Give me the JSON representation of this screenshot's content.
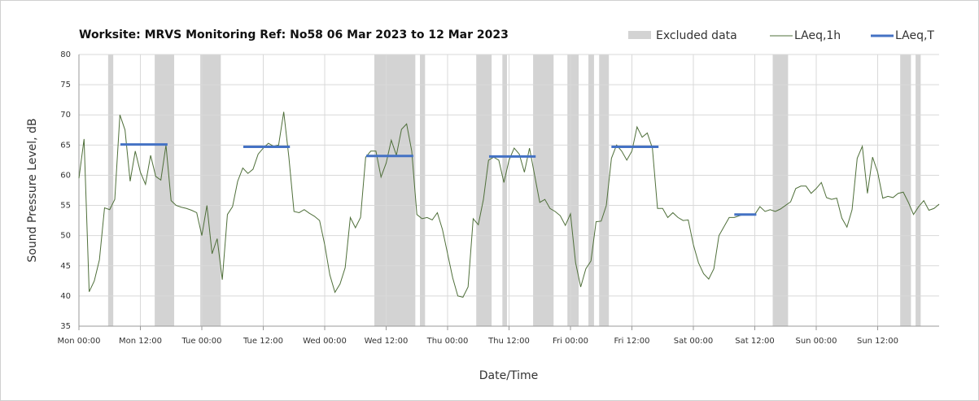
{
  "chart_data": {
    "type": "line",
    "title": "Worksite: MRVS   Monitoring Ref: No58    06 Mar 2023 to 12 Mar 2023",
    "x_label": "Date/Time",
    "y_label": "Sound Pressure Level, dB",
    "x": [
      0,
      1,
      2,
      3,
      4,
      5,
      6,
      7,
      8,
      9,
      10,
      11,
      12,
      13,
      14,
      15,
      16,
      17,
      18,
      19,
      20,
      21,
      22,
      23,
      24,
      25,
      26,
      27,
      28,
      29,
      30,
      31,
      32,
      33,
      34,
      35,
      36,
      37,
      38,
      39,
      40,
      41,
      42,
      43,
      44,
      45,
      46,
      47,
      48,
      49,
      50,
      51,
      52,
      53,
      54,
      55,
      56,
      57,
      58,
      59,
      60,
      61,
      62,
      63,
      64,
      65,
      66,
      67,
      68,
      69,
      70,
      71,
      72,
      73,
      74,
      75,
      76,
      77,
      78,
      79,
      80,
      81,
      82,
      83,
      84,
      85,
      86,
      87,
      88,
      89,
      90,
      91,
      92,
      93,
      94,
      95,
      96,
      97,
      98,
      99,
      100,
      101,
      102,
      103,
      104,
      105,
      106,
      107,
      108,
      109,
      110,
      111,
      112,
      113,
      114,
      115,
      116,
      117,
      118,
      119,
      120,
      121,
      122,
      123,
      124,
      125,
      126,
      127,
      128,
      129,
      130,
      131,
      132,
      133,
      134,
      135,
      136,
      137,
      138,
      139,
      140,
      141,
      142,
      143,
      144,
      145,
      146,
      147,
      148,
      149,
      150,
      151,
      152,
      153,
      154,
      155,
      156,
      157,
      158,
      159,
      160,
      161,
      162,
      163,
      164,
      165,
      166,
      167,
      168
    ],
    "series": [
      {
        "name": "LAeq,1h",
        "color": "#4f6f3a",
        "values": [
          59.5,
          66,
          40.7,
          42.5,
          46,
          54.6,
          54.3,
          56,
          70,
          67.5,
          59,
          64,
          60.5,
          58.5,
          63.3,
          59.8,
          59.2,
          65,
          55.8,
          55,
          54.7,
          54.5,
          54.2,
          53.8,
          50,
          55,
          47,
          49.5,
          42.7,
          53.5,
          54.8,
          59,
          61.2,
          60.3,
          61,
          63.5,
          64.5,
          65.3,
          64.8,
          65,
          70.5,
          63,
          54,
          53.8,
          54.3,
          53.7,
          53.2,
          52.5,
          48.5,
          43.5,
          40.6,
          42,
          44.7,
          53,
          51.3,
          53,
          63,
          64,
          64,
          59.7,
          62,
          65.8,
          63.3,
          67.6,
          68.5,
          64,
          53.5,
          52.8,
          53,
          52.6,
          53.8,
          51,
          47,
          43,
          40,
          39.8,
          41.5,
          52.8,
          51.8,
          56,
          62.5,
          63,
          62.5,
          58.8,
          62.5,
          64.5,
          63.5,
          60.5,
          64.5,
          60,
          55.5,
          56,
          54.5,
          54,
          53.3,
          51.7,
          53.6,
          45.5,
          41.5,
          44.5,
          45.8,
          52.3,
          52.4,
          55,
          62.8,
          65,
          64,
          62.5,
          64,
          68,
          66.3,
          67,
          64.5,
          54.5,
          54.5,
          53,
          53.8,
          53,
          52.5,
          52.6,
          48.5,
          45.5,
          43.7,
          42.8,
          44.5,
          50,
          51.5,
          53,
          53,
          53.3,
          53.5,
          53.6,
          53.5,
          54.8,
          54,
          54.3,
          54,
          54.4,
          55,
          55.6,
          57.8,
          58.2,
          58.2,
          57,
          57.8,
          58.8,
          56.3,
          56,
          56.2,
          52.9,
          51.4,
          54.3,
          62.8,
          64.8,
          57,
          63,
          60.5,
          56.2,
          56.5,
          56.3,
          57,
          57.2,
          55.5,
          53.5,
          54.8,
          55.8,
          54.2,
          54.5,
          55.2
        ]
      }
    ],
    "excluded": {
      "name": "Excluded data",
      "color": "#d3d3d3",
      "ranges": [
        [
          5.7,
          6.7
        ],
        [
          14.8,
          18.6
        ],
        [
          23.7,
          27.7
        ],
        [
          57.7,
          65.7
        ],
        [
          66.6,
          67.6
        ],
        [
          77.6,
          80.6
        ],
        [
          82.7,
          83.6
        ],
        [
          88.7,
          92.7
        ],
        [
          95.4,
          97.6
        ],
        [
          99.5,
          100.6
        ],
        [
          101.6,
          103.5
        ],
        [
          135.5,
          138.5
        ],
        [
          160.4,
          162.5
        ],
        [
          163.4,
          164.4
        ]
      ]
    },
    "laeq_t": {
      "name": "LAeq,T",
      "color": "#4472c4",
      "segments": [
        {
          "start": 8.1,
          "end": 17.3,
          "value": 65.1
        },
        {
          "start": 32.1,
          "end": 41.2,
          "value": 64.7
        },
        {
          "start": 56.1,
          "end": 65.3,
          "value": 63.2
        },
        {
          "start": 80.1,
          "end": 89.2,
          "value": 63.1
        },
        {
          "start": 104,
          "end": 113.2,
          "value": 64.7
        },
        {
          "start": 128,
          "end": 132.3,
          "value": 53.5
        }
      ]
    },
    "xlim": [
      0,
      168
    ],
    "ylim": [
      35,
      80
    ],
    "xticks": [
      {
        "value": 0,
        "label": "Mon 00:00"
      },
      {
        "value": 12,
        "label": "Mon 12:00"
      },
      {
        "value": 24,
        "label": "Tue 00:00"
      },
      {
        "value": 36,
        "label": "Tue 12:00"
      },
      {
        "value": 48,
        "label": "Wed 00:00"
      },
      {
        "value": 60,
        "label": "Wed 12:00"
      },
      {
        "value": 72,
        "label": "Thu 00:00"
      },
      {
        "value": 84,
        "label": "Thu 12:00"
      },
      {
        "value": 96,
        "label": "Fri 00:00"
      },
      {
        "value": 108,
        "label": "Fri 12:00"
      },
      {
        "value": 120,
        "label": "Sat 00:00"
      },
      {
        "value": 132,
        "label": "Sat 12:00"
      },
      {
        "value": 144,
        "label": "Sun 00:00"
      },
      {
        "value": 156,
        "label": "Sun 12:00"
      }
    ],
    "yticks": [
      35,
      40,
      45,
      50,
      55,
      60,
      65,
      70,
      75,
      80
    ],
    "grid": true
  }
}
